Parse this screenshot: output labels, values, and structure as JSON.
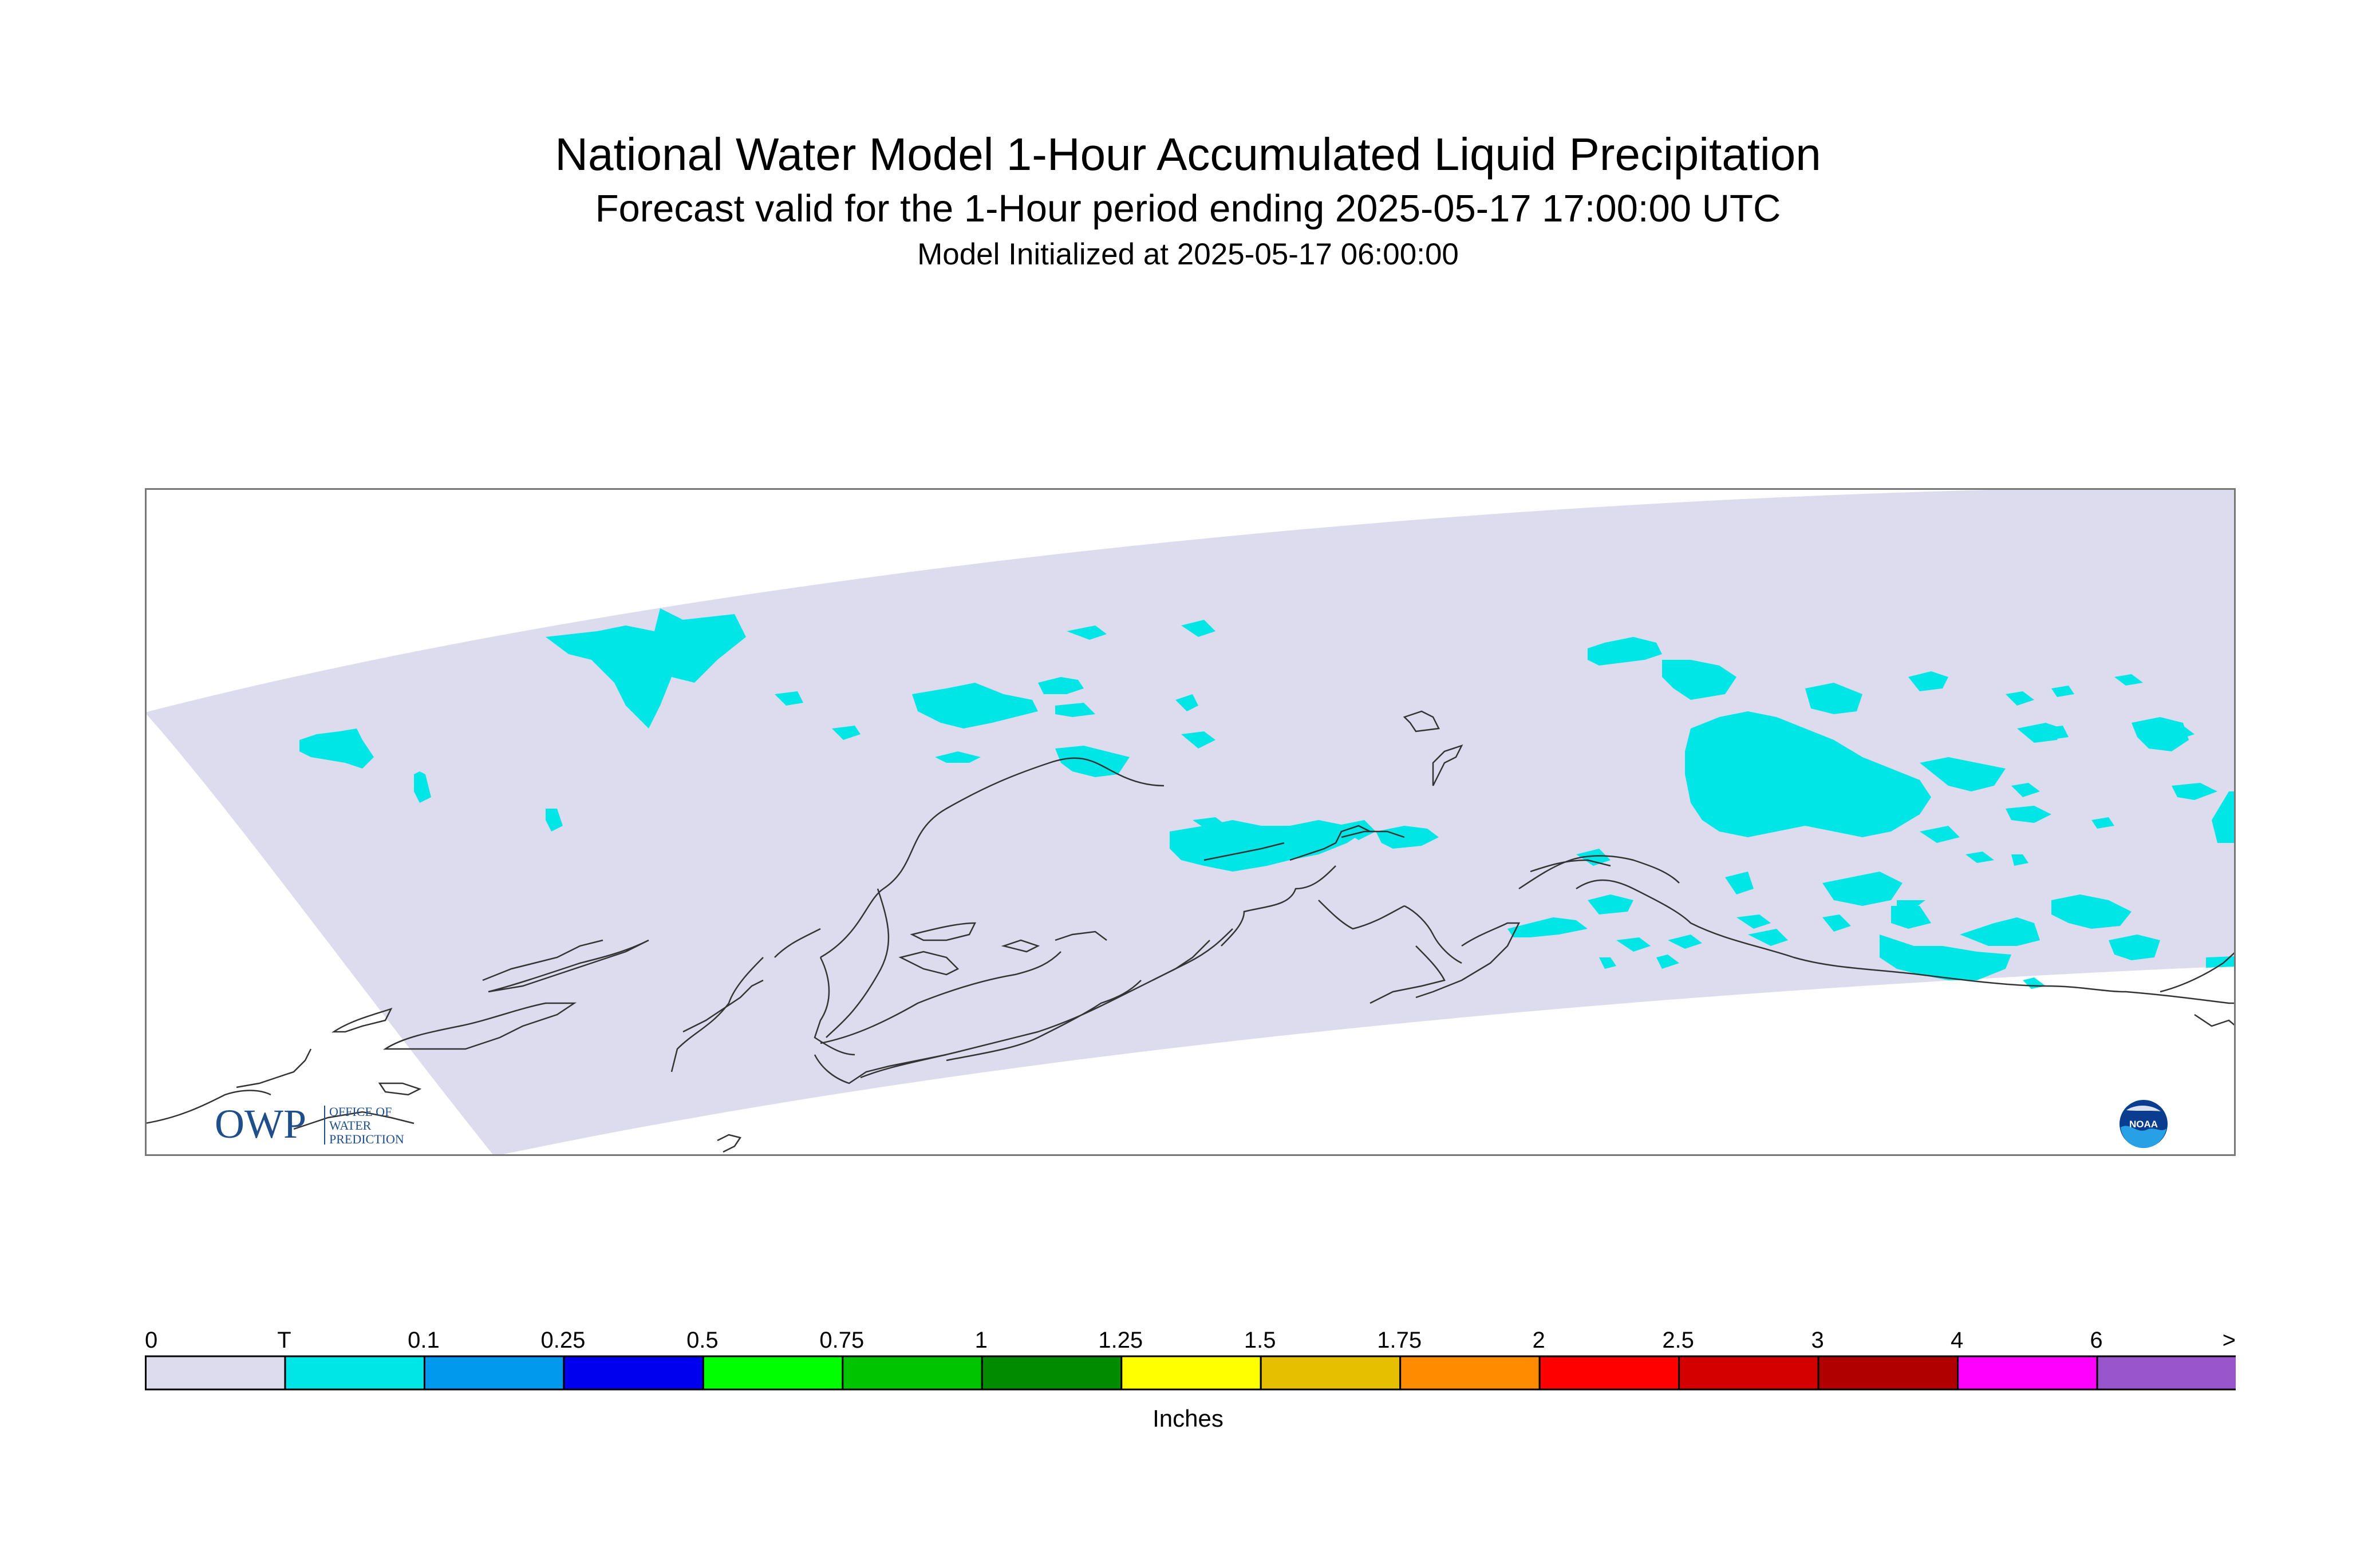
{
  "header": {
    "title": "National Water Model 1-Hour Accumulated Liquid Precipitation",
    "subtitle": "Forecast valid for the 1-Hour period ending 2025-05-17 17:00:00 UTC",
    "init": "Model Initialized at 2025-05-17 06:00:00"
  },
  "logos": {
    "owp": {
      "letters": "OWP",
      "line1": "OFFICE OF",
      "line2": "WATER",
      "line3": "PREDICTION"
    },
    "noaa": {
      "text": "NOAA"
    }
  },
  "map": {
    "domain_color": "#dcdcee",
    "precip_color": "#00e6e6",
    "coast_color": "#333333"
  },
  "legend": {
    "unit": "Inches",
    "labels": [
      "0",
      "T",
      "0.1",
      "0.25",
      "0.5",
      "0.75",
      "1",
      "1.25",
      "1.5",
      "1.75",
      "2",
      "2.5",
      "3",
      "4",
      "6",
      ">"
    ],
    "colors": [
      "#dcdcee",
      "#00e6e6",
      "#0099ee",
      "#0000ee",
      "#00ff00",
      "#00c400",
      "#008c00",
      "#ffff00",
      "#e6c000",
      "#ff8c00",
      "#ff0000",
      "#d40000",
      "#b00000",
      "#ff00ff",
      "#9955cc"
    ]
  }
}
